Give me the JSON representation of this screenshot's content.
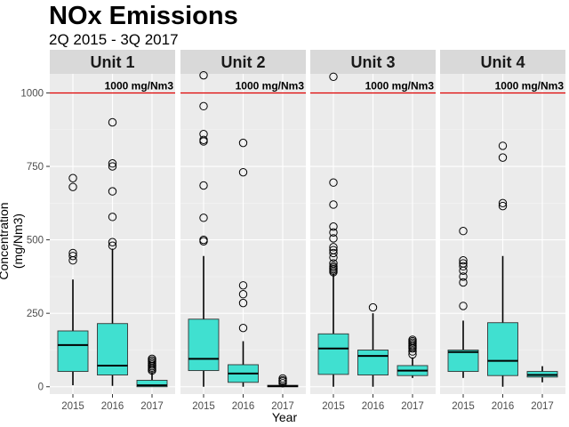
{
  "chart_data": {
    "type": "box",
    "title": "NOx Emissions",
    "subtitle": "2Q 2015 - 3Q 2017",
    "xlabel": "Year",
    "ylabel": "Concentration (mg/Nm3)",
    "ylim": [
      -25,
      1065
    ],
    "yticks": [
      0,
      250,
      500,
      750,
      1000
    ],
    "categories": [
      "2015",
      "2016",
      "2017"
    ],
    "threshold": {
      "value": 1000,
      "label": "1000 mg/Nm3",
      "color": "#dd0000"
    },
    "box_color": "#40e0d0",
    "panels": [
      {
        "name": "Unit 1",
        "boxes": [
          {
            "x": "2015",
            "q1": 52,
            "median": 142,
            "q3": 190,
            "whisker_low": 5,
            "whisker_high": 365,
            "outliers": [
              430,
              445,
              455,
              680,
              710
            ]
          },
          {
            "x": "2016",
            "q1": 40,
            "median": 72,
            "q3": 215,
            "whisker_low": 3,
            "whisker_high": 470,
            "outliers": [
              480,
              492,
              578,
              665,
              750,
              760,
              900
            ]
          },
          {
            "x": "2017",
            "q1": 0,
            "median": 5,
            "q3": 22,
            "whisker_low": 0,
            "whisker_high": 50,
            "outliers": [
              55,
              60,
              65,
              70,
              75,
              80,
              85,
              90,
              95
            ]
          }
        ]
      },
      {
        "name": "Unit 2",
        "boxes": [
          {
            "x": "2015",
            "q1": 55,
            "median": 95,
            "q3": 230,
            "whisker_low": 0,
            "whisker_high": 445,
            "outliers": [
              495,
              500,
              575,
              685,
              835,
              840,
              860,
              955,
              1060
            ]
          },
          {
            "x": "2016",
            "q1": 15,
            "median": 45,
            "q3": 75,
            "whisker_low": 0,
            "whisker_high": 155,
            "outliers": [
              200,
              285,
              315,
              345,
              730,
              830
            ]
          },
          {
            "x": "2017",
            "q1": 0,
            "median": 2,
            "q3": 5,
            "whisker_low": 0,
            "whisker_high": 8,
            "outliers": [
              12,
              18,
              22,
              28
            ]
          }
        ]
      },
      {
        "name": "Unit 3",
        "boxes": [
          {
            "x": "2015",
            "q1": 42,
            "median": 130,
            "q3": 180,
            "whisker_low": 0,
            "whisker_high": 385,
            "outliers": [
              390,
              395,
              400,
              405,
              410,
              420,
              440,
              455,
              465,
              475,
              505,
              525,
              545,
              620,
              695,
              1055
            ]
          },
          {
            "x": "2016",
            "q1": 40,
            "median": 105,
            "q3": 125,
            "whisker_low": 0,
            "whisker_high": 250,
            "outliers": [
              270
            ]
          },
          {
            "x": "2017",
            "q1": 38,
            "median": 55,
            "q3": 72,
            "whisker_low": 30,
            "whisker_high": 100,
            "outliers": [
              110,
              120,
              130,
              135,
              140,
              145,
              150,
              155,
              160
            ]
          }
        ]
      },
      {
        "name": "Unit 4",
        "boxes": [
          {
            "x": "2015",
            "q1": 52,
            "median": 118,
            "q3": 125,
            "whisker_low": 30,
            "whisker_high": 225,
            "outliers": [
              275,
              355,
              375,
              395,
              410,
              420,
              430,
              530
            ]
          },
          {
            "x": "2016",
            "q1": 38,
            "median": 88,
            "q3": 218,
            "whisker_low": 0,
            "whisker_high": 445,
            "outliers": [
              615,
              625,
              780,
              820
            ]
          },
          {
            "x": "2017",
            "q1": 33,
            "median": 40,
            "q3": 52,
            "whisker_low": 15,
            "whisker_high": 70,
            "outliers": []
          }
        ]
      }
    ]
  }
}
